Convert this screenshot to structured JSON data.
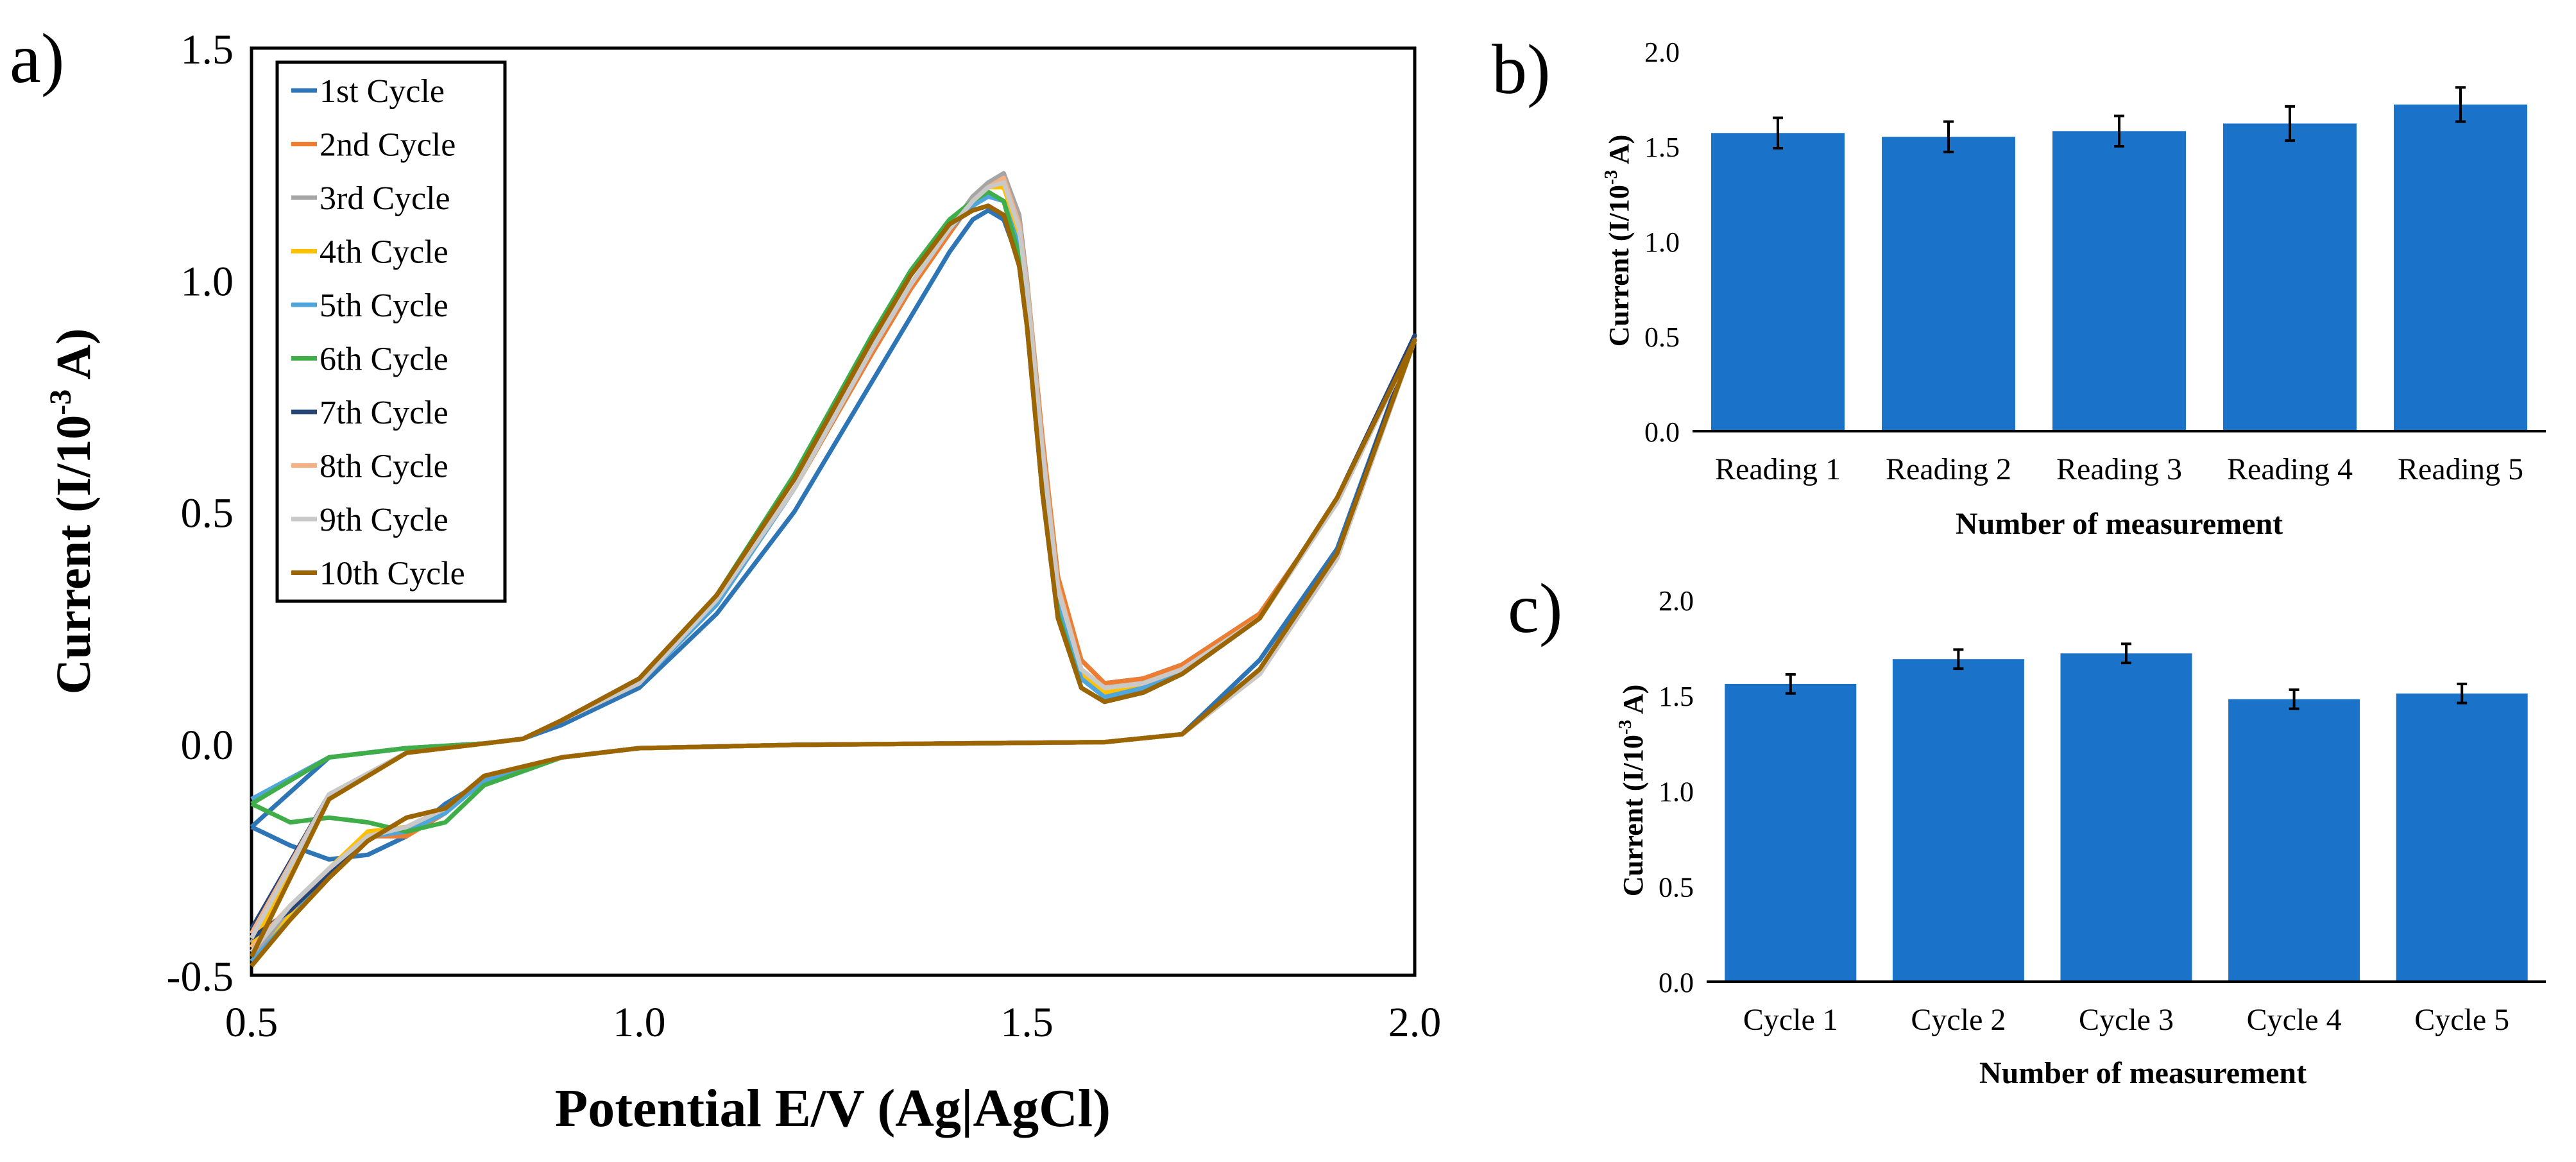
{
  "panel_labels": {
    "a": "a)",
    "b": "b)",
    "c": "c)"
  },
  "colors": {
    "bar": "#1a73c9",
    "cycles": [
      "#2e75b6",
      "#ed7d31",
      "#a5a5a5",
      "#ffc000",
      "#4ea6dc",
      "#3fae49",
      "#264478",
      "#f4b183",
      "#c9c9c9",
      "#9c6500"
    ]
  },
  "chart_data": [
    {
      "id": "a",
      "type": "line",
      "xlabel": "Potential E/V (Ag|AgCl)",
      "ylabel_main": "Current (I/10",
      "ylabel_sup": "-3",
      "ylabel_tail": " A)",
      "xlim": [
        0.5,
        2.0
      ],
      "ylim": [
        -0.5,
        1.5
      ],
      "xticks": [
        0.5,
        1.0,
        1.5,
        2.0
      ],
      "xtick_labels": [
        "0.5",
        "1.0",
        "1.5",
        "2.0"
      ],
      "yticks": [
        -0.5,
        0.0,
        0.5,
        1.0,
        1.5
      ],
      "ytick_labels": [
        "-0.5",
        "0.0",
        "0.5",
        "1.0",
        "1.5"
      ],
      "legend_position": "top-left",
      "anodic_x": [
        0.5,
        0.6,
        0.7,
        0.8,
        0.85,
        0.9,
        1.0,
        1.1,
        1.2,
        1.3,
        1.35,
        1.4,
        1.43,
        1.45,
        1.47,
        1.49,
        1.5,
        1.52,
        1.54,
        1.57,
        1.6,
        1.65,
        1.7,
        1.8,
        1.9,
        2.0
      ],
      "cathodic_x": [
        2.0,
        1.9,
        1.8,
        1.7,
        1.6,
        1.4,
        1.2,
        1.0,
        0.9,
        0.8,
        0.75,
        0.7,
        0.65,
        0.6,
        0.55,
        0.5
      ],
      "series": [
        {
          "name": "1st Cycle",
          "anodic_y": [
            -0.18,
            -0.03,
            -0.01,
            0.0,
            0.01,
            0.04,
            0.12,
            0.28,
            0.5,
            0.78,
            0.92,
            1.06,
            1.13,
            1.15,
            1.13,
            1.04,
            0.93,
            0.62,
            0.35,
            0.18,
            0.13,
            0.14,
            0.17,
            0.28,
            0.52,
            0.88
          ],
          "cathodic_y": [
            0.88,
            0.42,
            0.18,
            0.02,
            0.003,
            0.0,
            -0.003,
            -0.01,
            -0.03,
            -0.08,
            -0.13,
            -0.2,
            -0.24,
            -0.25,
            -0.22,
            -0.18
          ]
        },
        {
          "name": "2nd Cycle",
          "anodic_y": [
            -0.42,
            -0.12,
            -0.02,
            0.0,
            0.01,
            0.05,
            0.13,
            0.31,
            0.55,
            0.84,
            0.98,
            1.1,
            1.17,
            1.2,
            1.21,
            1.12,
            1.0,
            0.66,
            0.36,
            0.18,
            0.13,
            0.14,
            0.17,
            0.28,
            0.52,
            0.87
          ],
          "cathodic_y": [
            0.87,
            0.4,
            0.15,
            0.02,
            0.003,
            0.0,
            -0.003,
            -0.01,
            -0.03,
            -0.07,
            -0.15,
            -0.2,
            -0.2,
            -0.27,
            -0.35,
            -0.45
          ]
        },
        {
          "name": "3rd Cycle",
          "anodic_y": [
            -0.43,
            -0.12,
            -0.02,
            0.0,
            0.01,
            0.05,
            0.13,
            0.3,
            0.55,
            0.85,
            0.99,
            1.11,
            1.18,
            1.21,
            1.23,
            1.14,
            1.0,
            0.64,
            0.34,
            0.16,
            0.12,
            0.13,
            0.16,
            0.27,
            0.52,
            0.87
          ],
          "cathodic_y": [
            0.87,
            0.4,
            0.15,
            0.02,
            0.003,
            0.0,
            -0.003,
            -0.01,
            -0.03,
            -0.07,
            -0.15,
            -0.19,
            -0.2,
            -0.27,
            -0.36,
            -0.46
          ]
        },
        {
          "name": "4th Cycle",
          "anodic_y": [
            -0.44,
            -0.12,
            -0.02,
            0.0,
            0.01,
            0.05,
            0.13,
            0.31,
            0.55,
            0.85,
            0.99,
            1.11,
            1.17,
            1.2,
            1.2,
            1.1,
            0.98,
            0.62,
            0.32,
            0.15,
            0.11,
            0.12,
            0.16,
            0.27,
            0.52,
            0.87
          ],
          "cathodic_y": [
            0.87,
            0.4,
            0.15,
            0.02,
            0.003,
            0.0,
            -0.003,
            -0.01,
            -0.03,
            -0.07,
            -0.14,
            -0.18,
            -0.19,
            -0.27,
            -0.37,
            -0.48
          ]
        },
        {
          "name": "5th Cycle",
          "anodic_y": [
            -0.12,
            -0.03,
            -0.01,
            0.0,
            0.01,
            0.05,
            0.13,
            0.3,
            0.55,
            0.85,
            0.99,
            1.11,
            1.16,
            1.18,
            1.17,
            1.07,
            0.95,
            0.58,
            0.3,
            0.14,
            0.1,
            0.12,
            0.15,
            0.27,
            0.52,
            0.87
          ],
          "cathodic_y": [
            0.87,
            0.4,
            0.15,
            0.02,
            0.003,
            0.0,
            -0.003,
            -0.01,
            -0.03,
            -0.08,
            -0.15,
            -0.19,
            -0.2,
            -0.28,
            -0.38,
            -0.47
          ]
        },
        {
          "name": "6th Cycle",
          "anodic_y": [
            -0.13,
            -0.03,
            -0.01,
            0.0,
            0.01,
            0.05,
            0.14,
            0.32,
            0.58,
            0.88,
            1.02,
            1.13,
            1.17,
            1.19,
            1.17,
            1.05,
            0.92,
            0.55,
            0.28,
            0.12,
            0.09,
            0.11,
            0.15,
            0.27,
            0.52,
            0.87
          ],
          "cathodic_y": [
            0.87,
            0.4,
            0.15,
            0.02,
            0.003,
            0.0,
            -0.003,
            -0.01,
            -0.03,
            -0.09,
            -0.17,
            -0.19,
            -0.17,
            -0.16,
            -0.17,
            -0.13
          ]
        },
        {
          "name": "7th Cycle",
          "anodic_y": [
            -0.4,
            -0.11,
            -0.02,
            0.0,
            0.01,
            0.05,
            0.14,
            0.32,
            0.57,
            0.87,
            1.01,
            1.12,
            1.15,
            1.16,
            1.14,
            1.03,
            0.9,
            0.54,
            0.27,
            0.12,
            0.09,
            0.11,
            0.15,
            0.27,
            0.53,
            0.88
          ],
          "cathodic_y": [
            0.88,
            0.41,
            0.16,
            0.02,
            0.003,
            0.0,
            -0.003,
            -0.01,
            -0.03,
            -0.07,
            -0.14,
            -0.16,
            -0.21,
            -0.28,
            -0.36,
            -0.42
          ]
        },
        {
          "name": "8th Cycle",
          "anodic_y": [
            -0.41,
            -0.11,
            -0.02,
            0.0,
            0.01,
            0.05,
            0.13,
            0.31,
            0.55,
            0.85,
            0.99,
            1.11,
            1.17,
            1.2,
            1.22,
            1.12,
            0.99,
            0.64,
            0.34,
            0.16,
            0.12,
            0.13,
            0.16,
            0.27,
            0.52,
            0.87
          ],
          "cathodic_y": [
            0.87,
            0.4,
            0.15,
            0.02,
            0.003,
            0.0,
            -0.003,
            -0.01,
            -0.03,
            -0.07,
            -0.14,
            -0.18,
            -0.2,
            -0.27,
            -0.35,
            -0.44
          ]
        },
        {
          "name": "9th Cycle",
          "anodic_y": [
            -0.42,
            -0.11,
            -0.02,
            0.0,
            0.01,
            0.05,
            0.13,
            0.31,
            0.55,
            0.85,
            0.99,
            1.11,
            1.17,
            1.2,
            1.21,
            1.11,
            0.98,
            0.63,
            0.33,
            0.16,
            0.12,
            0.13,
            0.16,
            0.27,
            0.52,
            0.87
          ],
          "cathodic_y": [
            0.87,
            0.4,
            0.15,
            0.02,
            0.003,
            0.0,
            -0.003,
            -0.01,
            -0.03,
            -0.07,
            -0.14,
            -0.18,
            -0.2,
            -0.27,
            -0.35,
            -0.45
          ]
        },
        {
          "name": "10th Cycle",
          "anodic_y": [
            -0.46,
            -0.12,
            -0.02,
            0.0,
            0.01,
            0.05,
            0.14,
            0.32,
            0.57,
            0.87,
            1.01,
            1.12,
            1.15,
            1.16,
            1.14,
            1.03,
            0.9,
            0.54,
            0.27,
            0.12,
            0.09,
            0.11,
            0.15,
            0.27,
            0.53,
            0.87
          ],
          "cathodic_y": [
            0.87,
            0.41,
            0.16,
            0.02,
            0.003,
            0.0,
            -0.003,
            -0.01,
            -0.03,
            -0.07,
            -0.14,
            -0.16,
            -0.21,
            -0.29,
            -0.38,
            -0.48
          ]
        }
      ]
    },
    {
      "id": "b",
      "type": "bar",
      "categories": [
        "Reading 1",
        "Reading 2",
        "Reading 3",
        "Reading 4",
        "Reading 5"
      ],
      "values": [
        1.57,
        1.55,
        1.58,
        1.62,
        1.72
      ],
      "errors": [
        0.08,
        0.08,
        0.08,
        0.09,
        0.09
      ],
      "xlabel": "Number of measurement",
      "ylabel_main": "Current (I/10",
      "ylabel_sup": "-3",
      "ylabel_tail": " A)",
      "ylim": [
        0.0,
        2.0
      ],
      "yticks": [
        0.0,
        0.5,
        1.0,
        1.5,
        2.0
      ],
      "ytick_labels": [
        "0.0",
        "0.5",
        "1.0",
        "1.5",
        "2.0"
      ],
      "grid": false
    },
    {
      "id": "c",
      "type": "bar",
      "categories": [
        "Cycle 1",
        "Cycle 2",
        "Cycle 3",
        "Cycle 4",
        "Cycle 5"
      ],
      "values": [
        1.56,
        1.69,
        1.72,
        1.48,
        1.51
      ],
      "errors": [
        0.05,
        0.05,
        0.05,
        0.05,
        0.05
      ],
      "xlabel": "Number of measurement",
      "ylabel_main": "Current (I/10",
      "ylabel_sup": "-3",
      "ylabel_tail": " A)",
      "ylim": [
        0.0,
        2.0
      ],
      "yticks": [
        0.0,
        0.5,
        1.0,
        1.5,
        2.0
      ],
      "ytick_labels": [
        "0.0",
        "0.5",
        "1.0",
        "1.5",
        "2.0"
      ],
      "grid": false
    }
  ]
}
